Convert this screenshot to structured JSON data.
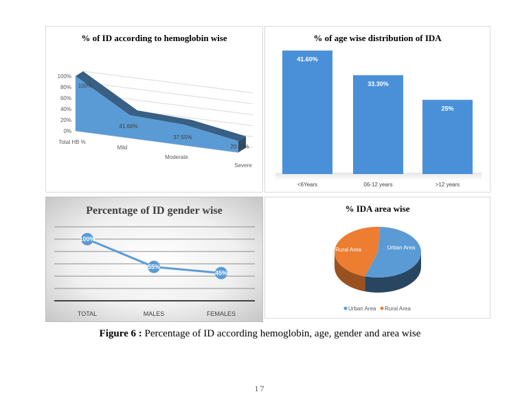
{
  "caption": {
    "label": "Figure 6 :",
    "text": " Percentage of ID according hemoglobin, age, gender and area wise"
  },
  "page_number": "17",
  "chart_data": [
    {
      "type": "area",
      "title": "% of ID according to hemoglobin wise",
      "categories": [
        "Total HB %",
        "Mild",
        "Moderate",
        "Severe"
      ],
      "values": [
        100,
        41.66,
        37.55,
        20.83
      ],
      "data_labels": [
        "100%",
        "41.66%",
        "37.55%",
        "20.83%"
      ],
      "y_ticks": [
        "0%",
        "20%",
        "40%",
        "60%",
        "80%",
        "100%"
      ],
      "ylim": [
        0,
        100
      ],
      "grid": true,
      "color": "#5B9BD5"
    },
    {
      "type": "bar",
      "title": "% of age wise distribution of IDA",
      "categories": [
        "<6Years",
        "06-12 years",
        ">12 years"
      ],
      "values": [
        41.6,
        33.3,
        25
      ],
      "data_labels": [
        "41.60%",
        "33.30%",
        "25%"
      ],
      "ylim": [
        0,
        45
      ],
      "color": "#4A90D9"
    },
    {
      "type": "line",
      "title": "Percentage of ID gender wise",
      "categories": [
        "TOTAL",
        "MALES",
        "FEMALES"
      ],
      "values": [
        100,
        55,
        45
      ],
      "data_labels": [
        "100%",
        "55%",
        "45%"
      ],
      "ylim": [
        0,
        120
      ],
      "grid": true,
      "color": "#5B9BD5"
    },
    {
      "type": "pie",
      "title": "% IDA area wise",
      "categories": [
        "Urban Area",
        "Rural Area"
      ],
      "values": [
        54,
        46
      ],
      "colors": [
        "#5B9BD5",
        "#ED7D31"
      ],
      "legend": "bottom"
    }
  ]
}
